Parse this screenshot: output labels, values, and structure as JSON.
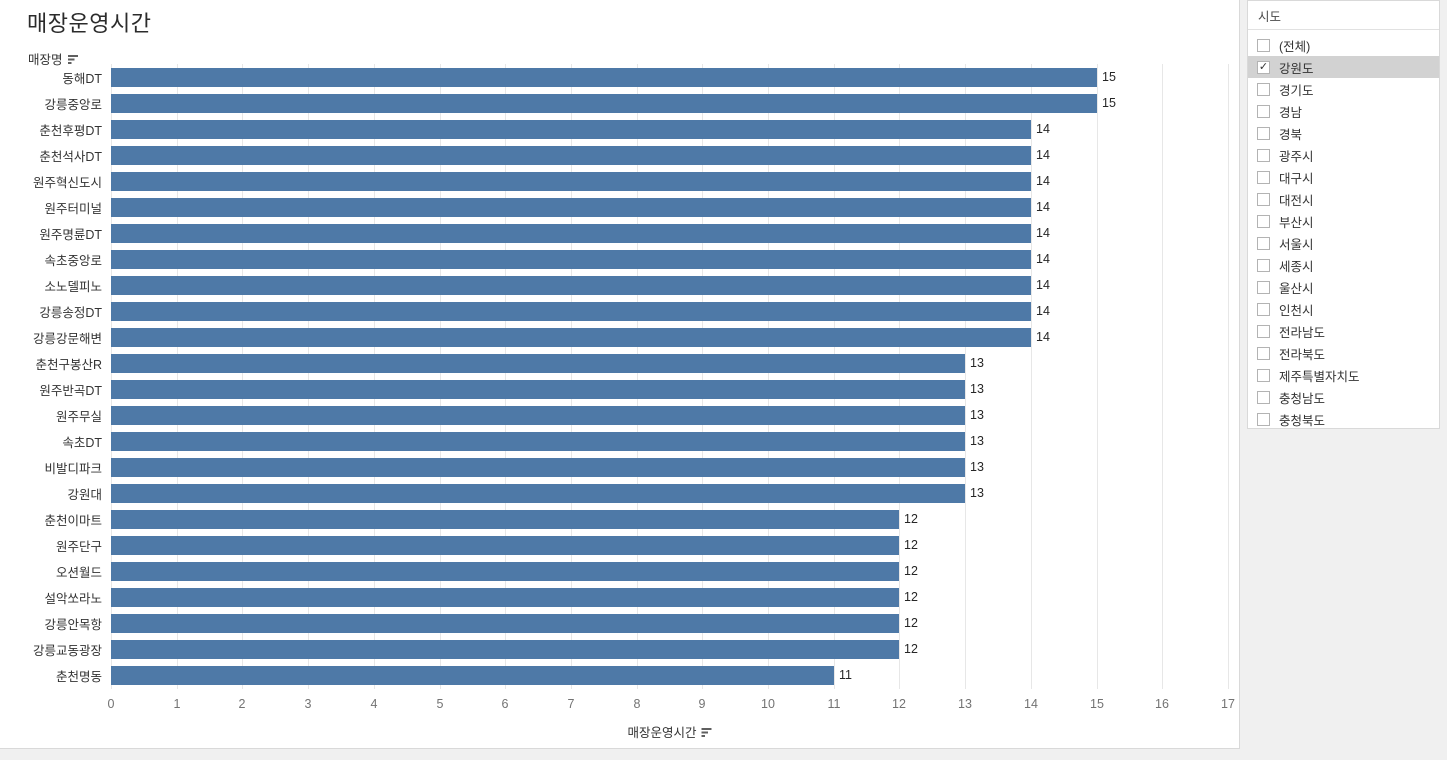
{
  "title": "매장운영시간",
  "row_header": "매장명",
  "axis_title": "매장운영시간",
  "colors": {
    "bar": "#4e79a7",
    "gridline": "#e7e7e7",
    "border": "#d9d9d9",
    "panel_background": "#f0f0f0",
    "selected_row_highlight": "#d2d2d2"
  },
  "chart_data": {
    "type": "bar",
    "orientation": "horizontal",
    "title": "매장운영시간",
    "xlabel": "매장운영시간",
    "ylabel": "매장명",
    "xlim": [
      0,
      17
    ],
    "x_ticks": [
      0,
      1,
      2,
      3,
      4,
      5,
      6,
      7,
      8,
      9,
      10,
      11,
      12,
      13,
      14,
      15,
      16,
      17
    ],
    "grid": true,
    "bar_labels": true,
    "categories": [
      "동해DT",
      "강릉중앙로",
      "춘천후평DT",
      "춘천석사DT",
      "원주혁신도시",
      "원주터미널",
      "원주명륜DT",
      "속초중앙로",
      "소노델피노",
      "강릉송정DT",
      "강릉강문해변",
      "춘천구봉산R",
      "원주반곡DT",
      "원주무실",
      "속초DT",
      "비발디파크",
      "강원대",
      "춘천이마트",
      "원주단구",
      "오션월드",
      "설악쏘라노",
      "강릉안목항",
      "강릉교동광장",
      "춘천명동"
    ],
    "values": [
      15,
      15,
      14,
      14,
      14,
      14,
      14,
      14,
      14,
      14,
      14,
      13,
      13,
      13,
      13,
      13,
      13,
      12,
      12,
      12,
      12,
      12,
      12,
      11
    ]
  },
  "filter": {
    "title": "시도",
    "items": [
      {
        "label": "(전체)",
        "checked": false
      },
      {
        "label": "강원도",
        "checked": true
      },
      {
        "label": "경기도",
        "checked": false
      },
      {
        "label": "경남",
        "checked": false
      },
      {
        "label": "경북",
        "checked": false
      },
      {
        "label": "광주시",
        "checked": false
      },
      {
        "label": "대구시",
        "checked": false
      },
      {
        "label": "대전시",
        "checked": false
      },
      {
        "label": "부산시",
        "checked": false
      },
      {
        "label": "서울시",
        "checked": false
      },
      {
        "label": "세종시",
        "checked": false
      },
      {
        "label": "울산시",
        "checked": false
      },
      {
        "label": "인천시",
        "checked": false
      },
      {
        "label": "전라남도",
        "checked": false
      },
      {
        "label": "전라북도",
        "checked": false
      },
      {
        "label": "제주특별자치도",
        "checked": false
      },
      {
        "label": "충청남도",
        "checked": false
      },
      {
        "label": "충청북도",
        "checked": false
      }
    ]
  }
}
